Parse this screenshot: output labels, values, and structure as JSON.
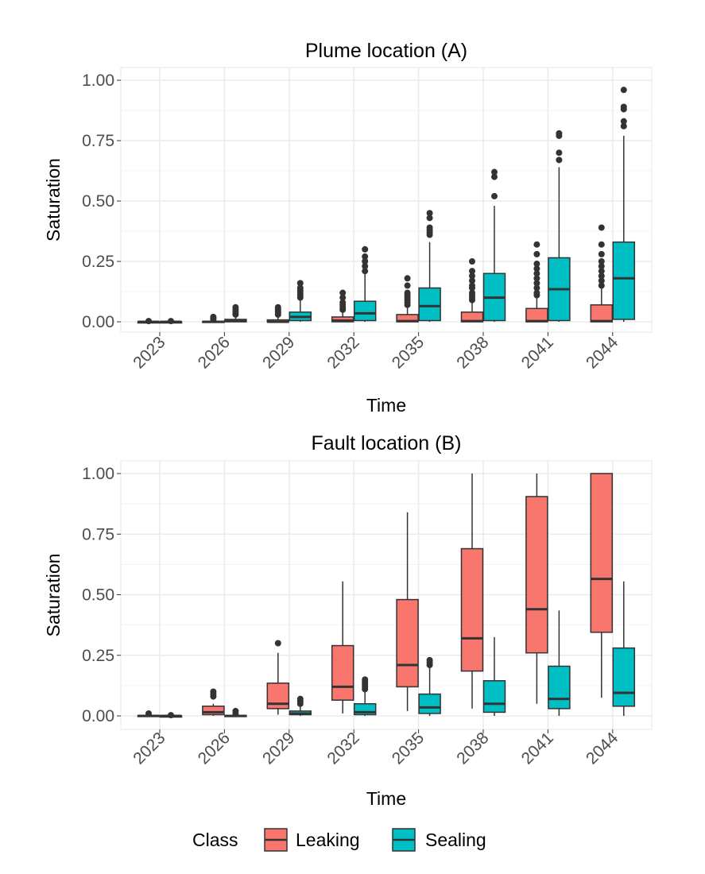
{
  "chart_data": [
    {
      "type": "boxplot",
      "title": "Plume location (A)",
      "xlabel": "Time",
      "ylabel": "Saturation",
      "ylim": [
        0,
        1
      ],
      "yticks": [
        "0.00",
        "0.25",
        "0.50",
        "0.75",
        "1.00"
      ],
      "yticks_values": [
        0,
        0.25,
        0.5,
        0.75,
        1
      ],
      "categories": [
        "2023",
        "2026",
        "2029",
        "2032",
        "2035",
        "2038",
        "2041",
        "2044"
      ],
      "grid": true,
      "series": [
        {
          "name": "Leaking",
          "color": "#F8766D",
          "boxes": [
            {
              "min": 0,
              "q1": 0,
              "median": 0,
              "q3": 0,
              "max": 0,
              "outliers": [
                0.003
              ]
            },
            {
              "min": 0,
              "q1": 0,
              "median": 0,
              "q3": 0.002,
              "max": 0.004,
              "outliers": [
                0.01,
                0.015,
                0.02
              ]
            },
            {
              "min": 0,
              "q1": 0,
              "median": 0,
              "q3": 0.008,
              "max": 0.02,
              "outliers": [
                0.03,
                0.04,
                0.05,
                0.06
              ]
            },
            {
              "min": 0,
              "q1": 0,
              "median": 0.005,
              "q3": 0.02,
              "max": 0.04,
              "outliers": [
                0.05,
                0.06,
                0.07,
                0.08,
                0.1,
                0.12
              ]
            },
            {
              "min": 0,
              "q1": 0,
              "median": 0.003,
              "q3": 0.03,
              "max": 0.06,
              "outliers": [
                0.07,
                0.08,
                0.09,
                0.1,
                0.11,
                0.12,
                0.15,
                0.18
              ]
            },
            {
              "min": 0,
              "q1": 0,
              "median": 0.003,
              "q3": 0.04,
              "max": 0.08,
              "outliers": [
                0.09,
                0.1,
                0.11,
                0.12,
                0.14,
                0.15,
                0.17,
                0.19,
                0.21,
                0.25
              ]
            },
            {
              "min": 0,
              "q1": 0,
              "median": 0.003,
              "q3": 0.055,
              "max": 0.1,
              "outliers": [
                0.11,
                0.12,
                0.14,
                0.16,
                0.18,
                0.2,
                0.22,
                0.24,
                0.28,
                0.32
              ]
            },
            {
              "min": 0,
              "q1": 0,
              "median": 0.003,
              "q3": 0.07,
              "max": 0.14,
              "outliers": [
                0.15,
                0.17,
                0.19,
                0.21,
                0.23,
                0.25,
                0.28,
                0.32,
                0.39
              ]
            }
          ]
        },
        {
          "name": "Sealing",
          "color": "#00BFC4",
          "boxes": [
            {
              "min": 0,
              "q1": 0,
              "median": 0,
              "q3": 0,
              "max": 0,
              "outliers": [
                0.003
              ]
            },
            {
              "min": 0,
              "q1": 0,
              "median": 0.003,
              "q3": 0.01,
              "max": 0.025,
              "outliers": [
                0.03,
                0.04,
                0.05,
                0.06
              ]
            },
            {
              "min": 0,
              "q1": 0.005,
              "median": 0.02,
              "q3": 0.04,
              "max": 0.09,
              "outliers": [
                0.1,
                0.11,
                0.12,
                0.13,
                0.14,
                0.16
              ]
            },
            {
              "min": 0,
              "q1": 0.005,
              "median": 0.035,
              "q3": 0.085,
              "max": 0.2,
              "outliers": [
                0.21,
                0.23,
                0.25,
                0.27,
                0.3
              ]
            },
            {
              "min": 0,
              "q1": 0.005,
              "median": 0.065,
              "q3": 0.14,
              "max": 0.33,
              "outliers": [
                0.36,
                0.37,
                0.38,
                0.39,
                0.43,
                0.45
              ]
            },
            {
              "min": 0,
              "q1": 0.005,
              "median": 0.1,
              "q3": 0.2,
              "max": 0.48,
              "outliers": [
                0.52,
                0.6,
                0.62
              ]
            },
            {
              "min": 0,
              "q1": 0.005,
              "median": 0.135,
              "q3": 0.265,
              "max": 0.64,
              "outliers": [
                0.67,
                0.7,
                0.77,
                0.78
              ]
            },
            {
              "min": 0,
              "q1": 0.01,
              "median": 0.18,
              "q3": 0.33,
              "max": 0.77,
              "outliers": [
                0.81,
                0.83,
                0.88,
                0.89,
                0.96
              ]
            }
          ]
        }
      ]
    },
    {
      "type": "boxplot",
      "title": "Fault location (B)",
      "xlabel": "Time",
      "ylabel": "Saturation",
      "ylim": [
        0,
        1
      ],
      "yticks": [
        "0.00",
        "0.25",
        "0.50",
        "0.75",
        "1.00"
      ],
      "yticks_values": [
        0,
        0.25,
        0.5,
        0.75,
        1
      ],
      "categories": [
        "2023",
        "2026",
        "2029",
        "2032",
        "2035",
        "2038",
        "2041",
        "2044"
      ],
      "grid": true,
      "series": [
        {
          "name": "Leaking",
          "color": "#F8766D",
          "boxes": [
            {
              "min": 0,
              "q1": 0,
              "median": 0,
              "q3": 0.002,
              "max": 0.004,
              "outliers": [
                0.01
              ]
            },
            {
              "min": 0,
              "q1": 0.005,
              "median": 0.015,
              "q3": 0.04,
              "max": 0.05,
              "outliers": [
                0.08,
                0.09,
                0.1
              ]
            },
            {
              "min": 0.005,
              "q1": 0.03,
              "median": 0.05,
              "q3": 0.135,
              "max": 0.26,
              "outliers": [
                0.3
              ]
            },
            {
              "min": 0.01,
              "q1": 0.065,
              "median": 0.12,
              "q3": 0.29,
              "max": 0.555,
              "outliers": []
            },
            {
              "min": 0.02,
              "q1": 0.12,
              "median": 0.21,
              "q3": 0.48,
              "max": 0.84,
              "outliers": []
            },
            {
              "min": 0.03,
              "q1": 0.185,
              "median": 0.32,
              "q3": 0.69,
              "max": 1.0,
              "outliers": []
            },
            {
              "min": 0.05,
              "q1": 0.26,
              "median": 0.44,
              "q3": 0.905,
              "max": 1.0,
              "outliers": []
            },
            {
              "min": 0.075,
              "q1": 0.345,
              "median": 0.565,
              "q3": 1.0,
              "max": 1.0,
              "outliers": []
            }
          ]
        },
        {
          "name": "Sealing",
          "color": "#00BFC4",
          "boxes": [
            {
              "min": 0,
              "q1": 0,
              "median": 0,
              "q3": 0,
              "max": 0,
              "outliers": [
                0.003
              ]
            },
            {
              "min": 0,
              "q1": 0,
              "median": 0,
              "q3": 0.002,
              "max": 0.005,
              "outliers": [
                0.01,
                0.02
              ]
            },
            {
              "min": 0,
              "q1": 0.005,
              "median": 0.01,
              "q3": 0.02,
              "max": 0.04,
              "outliers": [
                0.05,
                0.06,
                0.07
              ]
            },
            {
              "min": 0,
              "q1": 0.005,
              "median": 0.015,
              "q3": 0.05,
              "max": 0.1,
              "outliers": [
                0.11,
                0.12,
                0.13,
                0.14,
                0.15
              ]
            },
            {
              "min": 0,
              "q1": 0.01,
              "median": 0.035,
              "q3": 0.09,
              "max": 0.2,
              "outliers": [
                0.21,
                0.22,
                0.23
              ]
            },
            {
              "min": 0,
              "q1": 0.015,
              "median": 0.05,
              "q3": 0.145,
              "max": 0.325,
              "outliers": []
            },
            {
              "min": 0,
              "q1": 0.03,
              "median": 0.07,
              "q3": 0.205,
              "max": 0.435,
              "outliers": []
            },
            {
              "min": 0,
              "q1": 0.04,
              "median": 0.095,
              "q3": 0.28,
              "max": 0.555,
              "outliers": []
            }
          ]
        }
      ]
    }
  ],
  "legend": {
    "title": "Class",
    "position": "bottom",
    "items": [
      {
        "label": "Leaking",
        "color": "#F8766D"
      },
      {
        "label": "Sealing",
        "color": "#00BFC4"
      }
    ]
  }
}
